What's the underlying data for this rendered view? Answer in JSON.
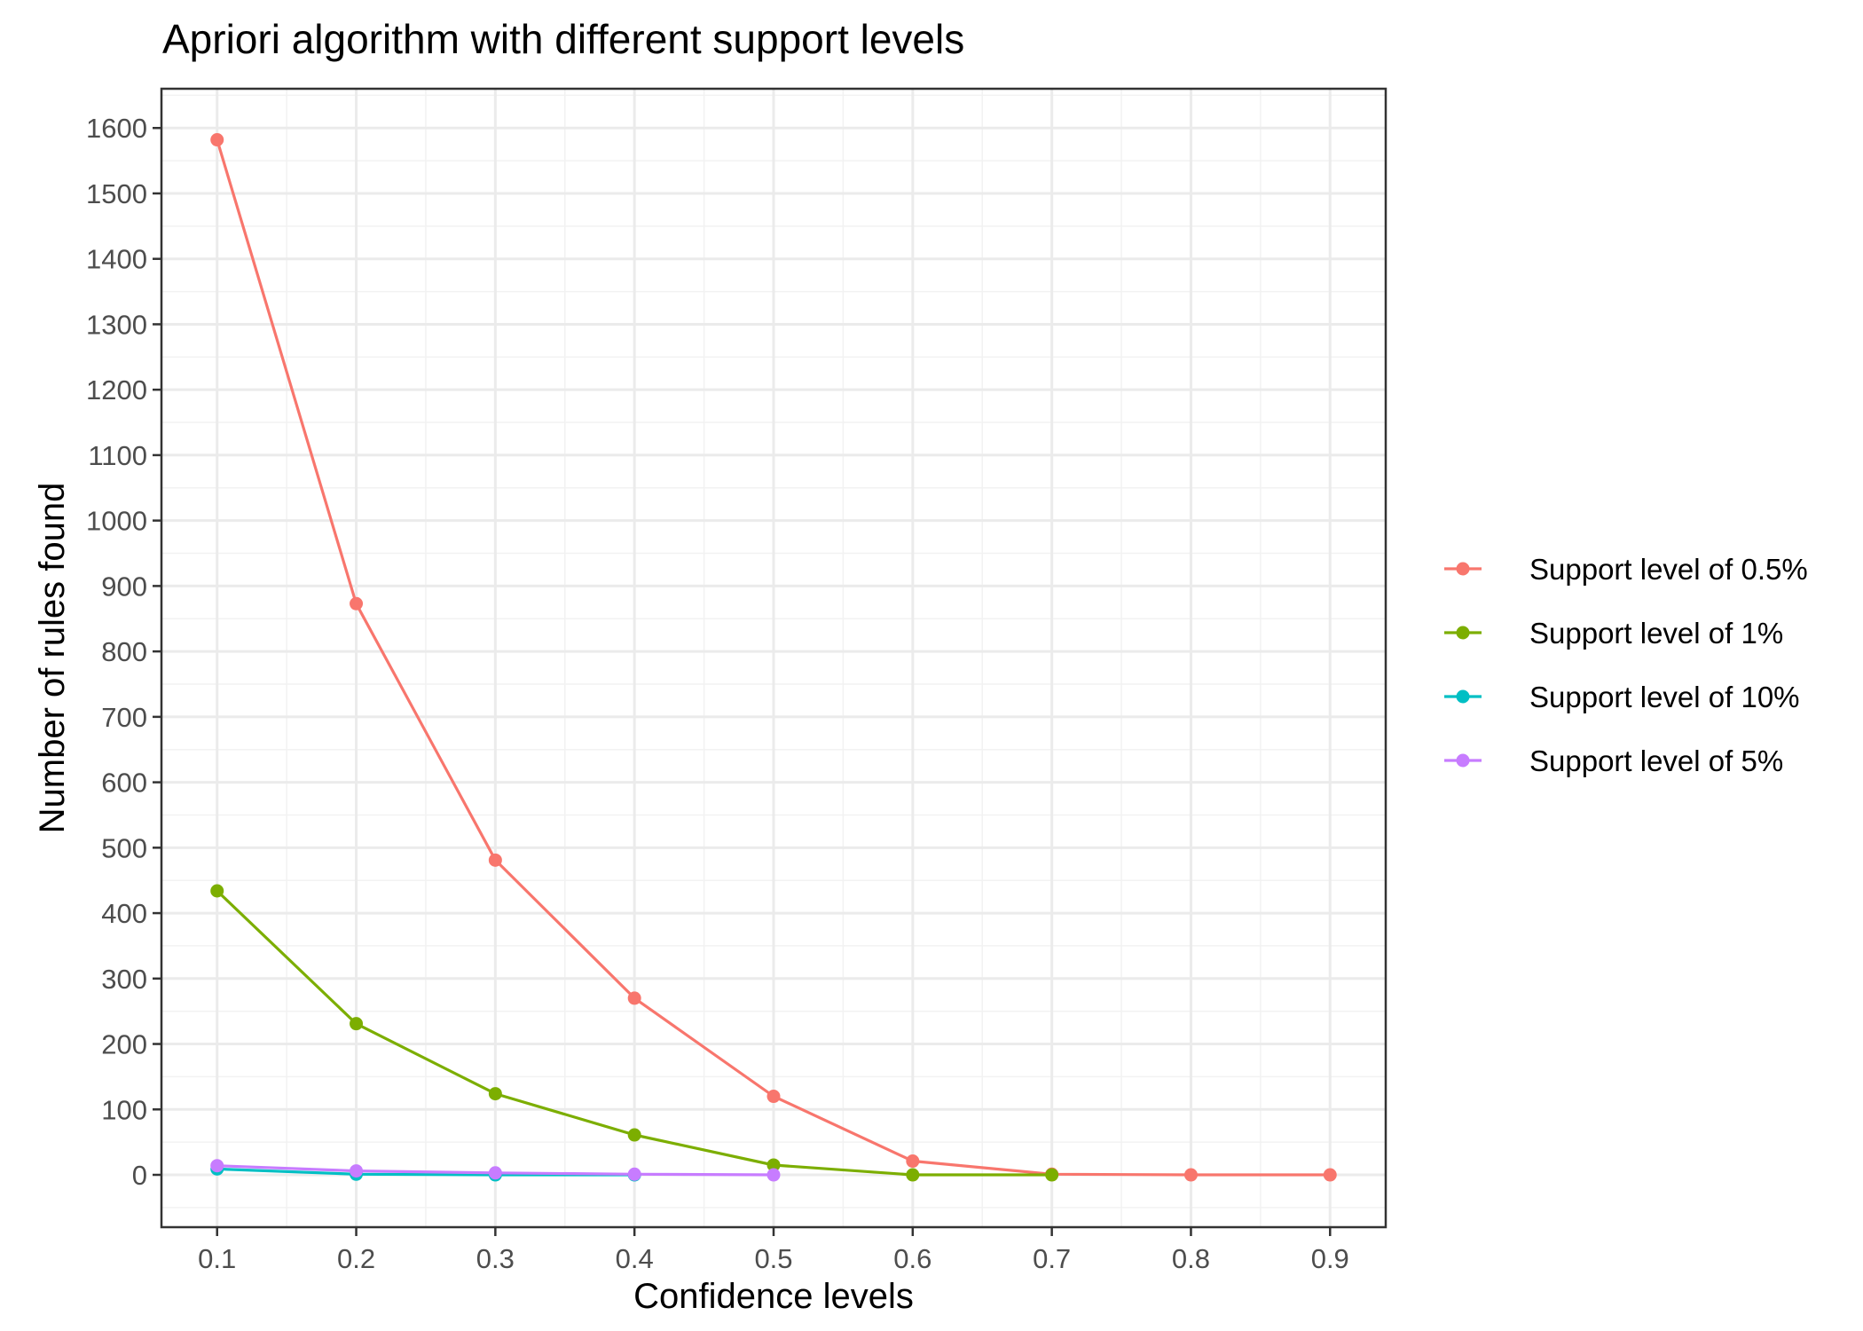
{
  "chart_data": {
    "type": "line",
    "title": "Apriori algorithm with different support levels",
    "xlabel": "Confidence levels",
    "ylabel": "Number of rules found",
    "x": [
      0.1,
      0.2,
      0.3,
      0.4,
      0.5,
      0.6,
      0.7,
      0.8,
      0.9
    ],
    "x_ticks": [
      "0.1",
      "0.2",
      "0.3",
      "0.4",
      "0.5",
      "0.6",
      "0.7",
      "0.8",
      "0.9"
    ],
    "y_ticks": [
      "0",
      "100",
      "200",
      "300",
      "400",
      "500",
      "600",
      "700",
      "800",
      "900",
      "1000",
      "1100",
      "1200",
      "1300",
      "1400",
      "1500",
      "1600"
    ],
    "xlim": [
      0.06,
      0.94
    ],
    "ylim": [
      -80,
      1660
    ],
    "grid": true,
    "legend_position": "right",
    "series": [
      {
        "name": "Support level of 0.5%",
        "color": "#F8766D",
        "x": [
          0.1,
          0.2,
          0.3,
          0.4,
          0.5,
          0.6,
          0.7,
          0.8,
          0.9
        ],
        "values": [
          1582,
          873,
          481,
          270,
          120,
          21,
          1,
          0,
          0
        ]
      },
      {
        "name": "Support level of 1%",
        "color": "#7CAE00",
        "x": [
          0.1,
          0.2,
          0.3,
          0.4,
          0.5,
          0.6,
          0.7
        ],
        "values": [
          434,
          231,
          124,
          61,
          15,
          0,
          0
        ]
      },
      {
        "name": "Support level of 10%",
        "color": "#00BFC4",
        "x": [
          0.1,
          0.2,
          0.3,
          0.4
        ],
        "values": [
          9,
          1,
          0,
          0
        ]
      },
      {
        "name": "Support level of 5%",
        "color": "#C77CFF",
        "x": [
          0.1,
          0.2,
          0.3,
          0.4,
          0.5
        ],
        "values": [
          14,
          6,
          3,
          1,
          0
        ]
      }
    ]
  }
}
